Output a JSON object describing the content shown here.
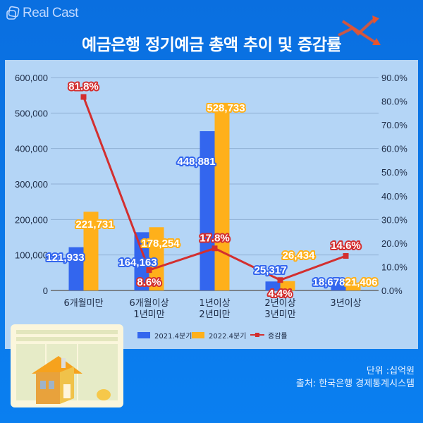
{
  "brand": {
    "name": "Real Cast"
  },
  "title": "예금은행 정기예금 총액 추이 및 증감률",
  "footer": {
    "unit": "단위 :십억원",
    "source": "출처: 한국은행 경제통계시스템"
  },
  "colors": {
    "series_2021": "#3366ee",
    "series_2022": "#ffb01a",
    "line": "#d32f2f",
    "background": "#0a74e6",
    "panel": "#b4d5f6"
  },
  "chart_data": {
    "type": "bar+line",
    "title": "예금은행 정기예금 총액 추이 및 증감률",
    "categories": [
      "6개월미만",
      "6개월이상\n1년미만",
      "1년이상\n2년미만",
      "2년이상\n3년미만",
      "3년이상"
    ],
    "category_lines": [
      [
        "6개월미만"
      ],
      [
        "6개월이상",
        "1년미만"
      ],
      [
        "1년이상",
        "2년미만"
      ],
      [
        "2년이상",
        "3년미만"
      ],
      [
        "3년이상"
      ]
    ],
    "series": [
      {
        "name": "2021.4분기",
        "type": "bar",
        "axis": "left",
        "values": [
          121933,
          164163,
          448881,
          25317,
          18678
        ],
        "labels": [
          "121,933",
          "164,163",
          "448,881",
          "25,317",
          "18,678"
        ]
      },
      {
        "name": "2022.4분기",
        "type": "bar",
        "axis": "left",
        "values": [
          221731,
          178254,
          528733,
          26434,
          21406
        ],
        "labels": [
          "221,731",
          "178,254",
          "528,733",
          "26,434",
          "21,406"
        ]
      },
      {
        "name": "증감률",
        "type": "line",
        "axis": "right",
        "values": [
          81.8,
          8.6,
          17.8,
          4.4,
          14.6
        ],
        "labels": [
          "81.8%",
          "8.6%",
          "17.8%",
          "4.4%",
          "14.6%"
        ]
      }
    ],
    "y_left": {
      "ticks": [
        "0",
        "100,000",
        "200,000",
        "300,000",
        "400,000",
        "500,000",
        "600,000"
      ],
      "ylim": [
        0,
        600000
      ]
    },
    "y_right": {
      "ticks": [
        "0.0%",
        "10.0%",
        "20.0%",
        "30.0%",
        "40.0%",
        "50.0%",
        "60.0%",
        "70.0%",
        "80.0%",
        "90.0%"
      ],
      "ylim": [
        0,
        90
      ]
    },
    "legend": [
      "2021.4분기",
      "2022.4분기",
      "증감률"
    ],
    "legend_position": "bottom",
    "grid": true,
    "unit": "십억원"
  }
}
